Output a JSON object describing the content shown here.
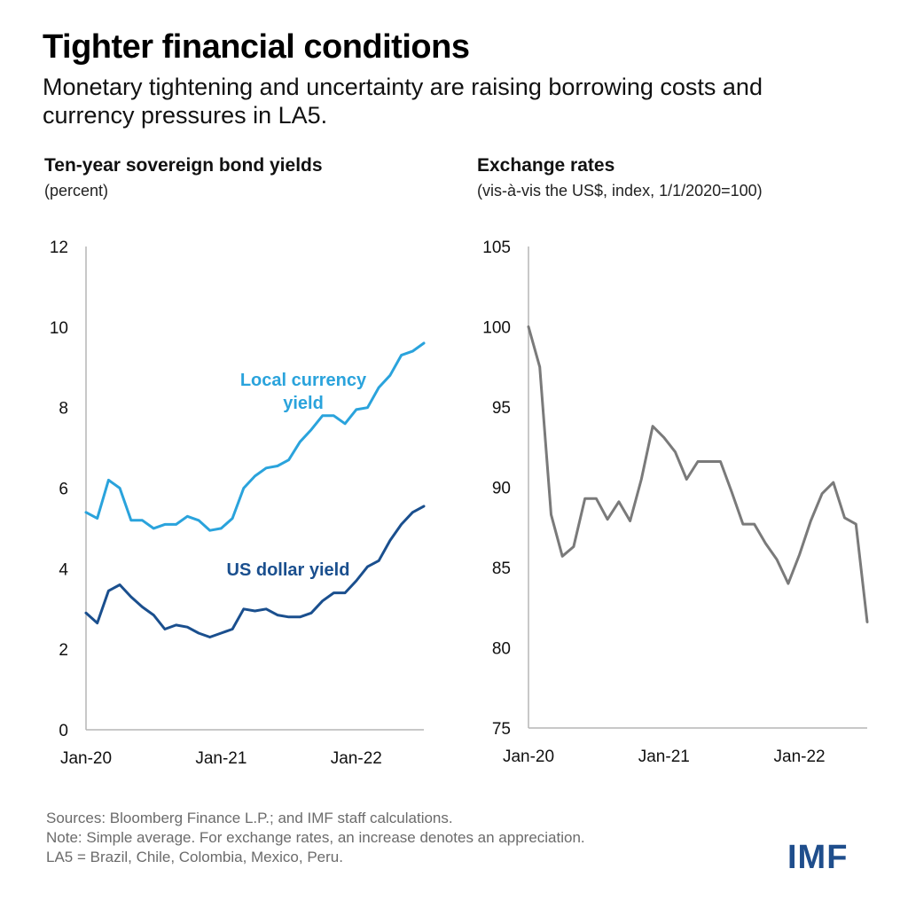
{
  "header": {
    "title": "Tighter financial conditions",
    "subtitle": "Monetary tightening and uncertainty are raising borrowing costs and currency pressures in LA5."
  },
  "footer": {
    "sources": "Sources: Bloomberg Finance L.P.; and IMF staff calculations.",
    "note": "Note: Simple average. For exchange rates, an increase denotes an appreciation.",
    "la5": "LA5 = Brazil, Chile, Colombia, Mexico, Peru."
  },
  "logo": {
    "text": "IMF",
    "color": "#1f4e8c"
  },
  "chart_data": [
    {
      "type": "line",
      "title": "Ten-year sovereign bond yields",
      "subtitle": "(percent)",
      "xlabel": "",
      "ylabel": "",
      "x_tick_labels": [
        "Jan-20",
        "Jan-21",
        "Jan-22"
      ],
      "x_tick_index": [
        0,
        12,
        24
      ],
      "y_ticks": [
        0,
        2,
        4,
        6,
        8,
        10,
        12
      ],
      "ylim": [
        0,
        12
      ],
      "grid": false,
      "series": [
        {
          "name": "Local currency yield",
          "label_lines": [
            "Local currency",
            "yield"
          ],
          "color": "#2aa3dc",
          "values": [
            5.4,
            5.25,
            6.2,
            6.0,
            5.2,
            5.2,
            5.0,
            5.1,
            5.1,
            5.3,
            5.2,
            4.95,
            5.0,
            5.25,
            6.0,
            6.3,
            6.5,
            6.55,
            6.7,
            7.15,
            7.45,
            7.8,
            7.8,
            7.6,
            7.95,
            8.0,
            8.5,
            8.8,
            9.3,
            9.4,
            9.6
          ]
        },
        {
          "name": "US dollar yield",
          "label_lines": [
            "US dollar yield"
          ],
          "color": "#1a4f8e",
          "values": [
            2.9,
            2.65,
            3.45,
            3.6,
            3.3,
            3.05,
            2.85,
            2.5,
            2.6,
            2.55,
            2.4,
            2.3,
            2.4,
            2.5,
            3.0,
            2.95,
            3.0,
            2.85,
            2.8,
            2.8,
            2.9,
            3.2,
            3.4,
            3.4,
            3.7,
            4.05,
            4.2,
            4.7,
            5.1,
            5.4,
            5.55
          ]
        }
      ]
    },
    {
      "type": "line",
      "title": "Exchange rates",
      "subtitle": "(vis-à-vis the US$, index, 1/1/2020=100)",
      "xlabel": "",
      "ylabel": "",
      "x_tick_labels": [
        "Jan-20",
        "Jan-21",
        "Jan-22"
      ],
      "x_tick_index": [
        0,
        12,
        24
      ],
      "y_ticks": [
        75,
        80,
        85,
        90,
        95,
        100,
        105
      ],
      "ylim": [
        75,
        105
      ],
      "grid": false,
      "series": [
        {
          "color": "#7a7a7a",
          "values": [
            100,
            97.5,
            88.3,
            85.7,
            86.3,
            89.3,
            89.3,
            88.0,
            89.1,
            87.9,
            90.5,
            93.8,
            93.1,
            92.2,
            90.5,
            91.6,
            91.6,
            91.6,
            89.7,
            87.7,
            87.7,
            86.5,
            85.5,
            84.0,
            85.8,
            87.9,
            89.6,
            90.3,
            88.1,
            87.7,
            81.6
          ]
        }
      ]
    }
  ]
}
